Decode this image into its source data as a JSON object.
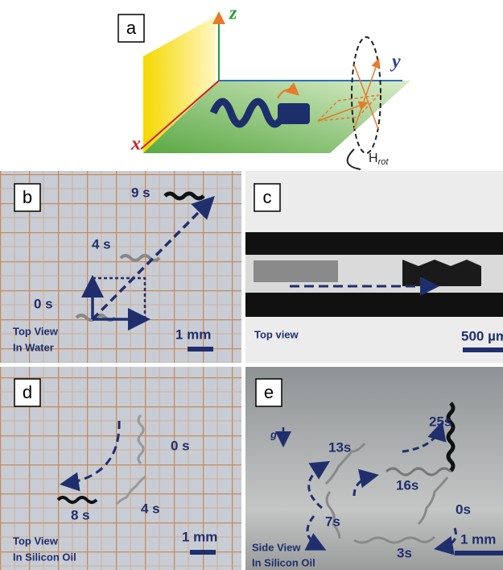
{
  "panel_a": {
    "label": "a",
    "axis_x": "x",
    "axis_y": "y",
    "axis_z": "z",
    "field": "H",
    "field_subscript": "rot"
  },
  "panel_b": {
    "label": "b",
    "times": [
      "9 s",
      "4 s",
      "0 s"
    ],
    "view": [
      "Top View",
      "In Water"
    ],
    "scale_bar": "1 mm"
  },
  "panel_c": {
    "label": "c",
    "view": "Top view",
    "scale_bar": "500 µm"
  },
  "panel_d": {
    "label": "d",
    "times": [
      "0 s",
      "8 s",
      "4 s"
    ],
    "view": [
      "Top View",
      "In Silicon Oil"
    ],
    "scale_bar": "1 mm"
  },
  "panel_e": {
    "label": "e",
    "gravity": "g",
    "times": [
      "25s",
      "13s",
      "16s",
      "0s",
      "7s",
      "3s"
    ],
    "view": [
      "Side View",
      "In Silicon Oil"
    ],
    "scale_bar": "1 mm"
  }
}
